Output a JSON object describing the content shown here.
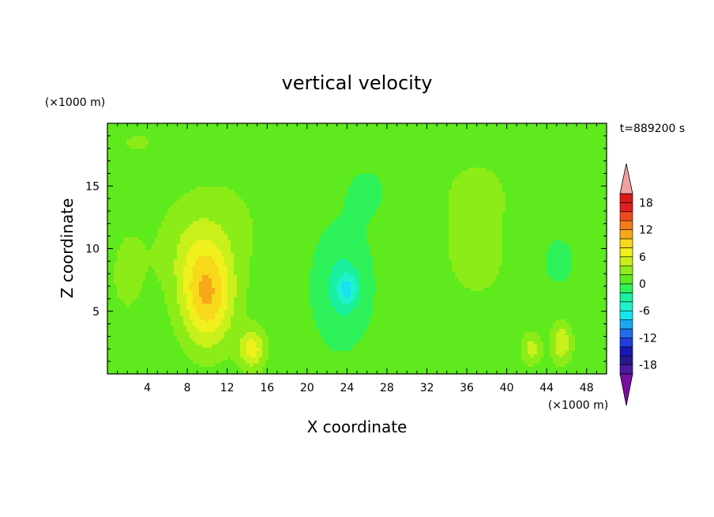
{
  "chart_data": {
    "type": "heatmap",
    "title": "vertical velocity",
    "xlabel": "X coordinate",
    "ylabel": "Z coordinate",
    "x_unit": "(×1000 m)",
    "y_unit": "(×1000 m)",
    "time_label": "t=889200 s",
    "xlim": [
      0,
      50
    ],
    "ylim": [
      0,
      20
    ],
    "x_ticks": [
      4,
      8,
      12,
      16,
      20,
      24,
      28,
      32,
      36,
      40,
      44,
      48
    ],
    "y_ticks": [
      5,
      10,
      15
    ],
    "colorbar": {
      "levels": [
        -20,
        -18,
        -16,
        -14,
        -12,
        -10,
        -8,
        -6,
        -4,
        -2,
        0,
        2,
        4,
        6,
        8,
        10,
        12,
        14,
        16,
        18,
        20
      ],
      "tick_labels": [
        "18",
        "12",
        "6",
        "0",
        "-6",
        "-12",
        "-18"
      ],
      "colors": [
        "#7a0fa0",
        "#4a1b9e",
        "#26188c",
        "#1616b4",
        "#1f3fe0",
        "#1f6fe8",
        "#1aa7f0",
        "#16e4f0",
        "#20f2cc",
        "#19f0a0",
        "#2ef25a",
        "#5eea1d",
        "#8cec18",
        "#c9f01a",
        "#f0f01c",
        "#f8d81a",
        "#f6a81a",
        "#f47a1a",
        "#ee4a1e",
        "#e0201e",
        "#d81818",
        "#f4a0a0"
      ],
      "extend": "both"
    },
    "features": [
      {
        "x": 10,
        "z": 6,
        "sx": 2.6,
        "sz": 3.8,
        "value": 8.5
      },
      {
        "x": 9,
        "z": 9.5,
        "sx": 3.2,
        "sz": 3.4,
        "value": 2.5
      },
      {
        "x": 11,
        "z": 12,
        "sx": 5.5,
        "sz": 4.5,
        "value": 1.5
      },
      {
        "x": 14.5,
        "z": 2,
        "sx": 1.3,
        "sz": 1.6,
        "value": 6
      },
      {
        "x": 23.5,
        "z": 7,
        "sx": 2.8,
        "sz": 4.5,
        "value": -3.5
      },
      {
        "x": 24,
        "z": 6.8,
        "sx": 1.0,
        "sz": 1.2,
        "value": -5
      },
      {
        "x": 26,
        "z": 14.5,
        "sx": 2.5,
        "sz": 2.5,
        "value": -1.3
      },
      {
        "x": 37,
        "z": 10,
        "sx": 4.5,
        "sz": 5.5,
        "value": 1.6
      },
      {
        "x": 37,
        "z": 15,
        "sx": 3.5,
        "sz": 2.5,
        "value": 1.0
      },
      {
        "x": 45,
        "z": 9,
        "sx": 3.0,
        "sz": 3.5,
        "value": -1.2
      },
      {
        "x": 45.5,
        "z": 2.5,
        "sx": 1.0,
        "sz": 1.6,
        "value": 5
      },
      {
        "x": 42.5,
        "z": 2,
        "sx": 1.0,
        "sz": 1.2,
        "value": 4
      },
      {
        "x": 2,
        "z": 8,
        "sx": 2.5,
        "sz": 5.0,
        "value": 1.4
      },
      {
        "x": 3,
        "z": 18.5,
        "sx": 3.5,
        "sz": 1.3,
        "value": 1.2
      }
    ]
  }
}
